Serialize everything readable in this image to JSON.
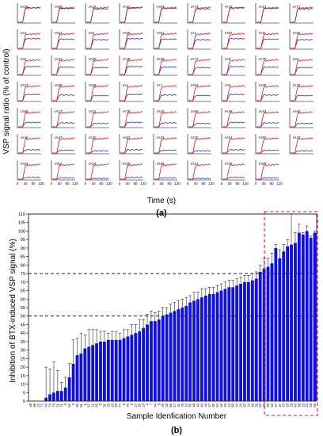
{
  "figure_a": {
    "panel_label": "(a)",
    "ylabel": "VSP signal ratio (% of control)",
    "xlabel": "Time (s)",
    "x_ticks": [
      "0",
      "40",
      "80",
      "120"
    ],
    "rows": [
      [
        "IA28",
        "IA58",
        "IA22",
        "IA72",
        "IA64",
        "IA74",
        "IA73",
        "IA21",
        "IA71"
      ],
      [
        "IA3",
        "IA51",
        "IA2",
        "IA60",
        "IA61",
        "IA1",
        "IA67",
        "IA11",
        "IA65"
      ],
      [
        "IA5",
        "IA31",
        "IA20",
        "IA15",
        "IA26",
        "IA77",
        "IA9",
        "IA70",
        "IA6"
      ],
      [
        "IA27",
        "IA35",
        "IA19",
        "IA4",
        "IA7",
        "IA54",
        "IA8",
        "IA45",
        "IA33"
      ],
      [
        "IA56",
        "IA17",
        "IA41",
        "IA76",
        "IA10",
        "IA55",
        "IA48",
        "IA44",
        "IA40"
      ],
      [
        "IA46",
        "IA47",
        "IA30",
        "IA62",
        "IA34",
        "IA32",
        "IA13",
        "IA50",
        "IA42"
      ],
      [
        "IA24",
        "IA52",
        "IA14",
        "IA49",
        "IA36",
        "IA31",
        "IA39",
        "IA59"
      ]
    ],
    "colors": {
      "control": "#e8141b",
      "treated": "#1f2fd0"
    }
  },
  "chart_data": {
    "type": "bar",
    "panel_label": "(b)",
    "ylabel": "Inhibition of BTX-induced VSP signal (%)",
    "xlabel": "Sample Idenfication Number",
    "ylim": [
      0,
      110
    ],
    "y_ticks": [
      "0",
      "5",
      "10",
      "15",
      "20",
      "25",
      "30",
      "35",
      "40",
      "45",
      "50",
      "55",
      "60",
      "65",
      "70",
      "75",
      "80",
      "85",
      "90",
      "95",
      "100",
      "105",
      "110"
    ],
    "reference_lines": [
      50,
      75
    ],
    "highlight_box": {
      "from_index": 61,
      "to_index": 73,
      "color": "#e8141b"
    },
    "bar_color": "#1010e6",
    "categories": [
      "28",
      "58",
      "22",
      "72",
      "64",
      "74",
      "73",
      "21",
      "71",
      "3",
      "51",
      "2",
      "60",
      "61",
      "1",
      "67",
      "11",
      "65",
      "5",
      "31",
      "20",
      "15",
      "26",
      "77",
      "9",
      "70",
      "6",
      "27",
      "35",
      "19",
      "4",
      "7",
      "54",
      "8",
      "45",
      "33",
      "56",
      "17",
      "41",
      "76",
      "10",
      "55",
      "48",
      "44",
      "40",
      "46",
      "47",
      "30",
      "62",
      "34",
      "32",
      "13",
      "50",
      "42",
      "24",
      "52",
      "14",
      "49",
      "36",
      "53",
      "39",
      "59",
      "63",
      "57",
      "37",
      "23",
      "18",
      "29",
      "43",
      "38",
      "16",
      "12",
      "25",
      "66"
    ],
    "values": [
      0,
      0,
      0,
      0,
      2,
      4,
      5,
      6,
      6,
      8,
      14,
      22,
      27,
      28,
      31,
      32,
      33,
      34,
      35,
      35,
      36,
      36,
      36,
      36,
      37,
      38,
      39,
      40,
      41,
      43,
      45,
      47,
      47,
      48,
      50,
      51,
      52,
      53,
      54,
      55,
      56,
      58,
      59,
      60,
      61,
      62,
      63,
      63,
      64,
      65,
      66,
      67,
      67,
      68,
      69,
      70,
      70,
      71,
      72,
      76,
      78,
      79,
      81,
      90,
      84,
      88,
      91,
      92,
      93,
      99,
      98,
      100,
      96,
      99
    ],
    "errors": [
      0,
      0,
      0,
      0,
      18,
      15,
      18,
      12,
      5,
      6,
      8,
      14,
      10,
      12,
      8,
      10,
      9,
      8,
      6,
      6,
      4,
      5,
      5,
      4,
      5,
      4,
      6,
      5,
      7,
      5,
      6,
      6,
      5,
      5,
      5,
      4,
      5,
      5,
      5,
      5,
      5,
      4,
      5,
      4,
      5,
      4,
      4,
      4,
      4,
      4,
      4,
      4,
      4,
      4,
      4,
      4,
      4,
      4,
      4,
      4,
      6,
      5,
      6,
      2,
      5,
      4,
      4,
      20,
      6,
      5,
      1,
      3,
      1,
      1
    ]
  }
}
